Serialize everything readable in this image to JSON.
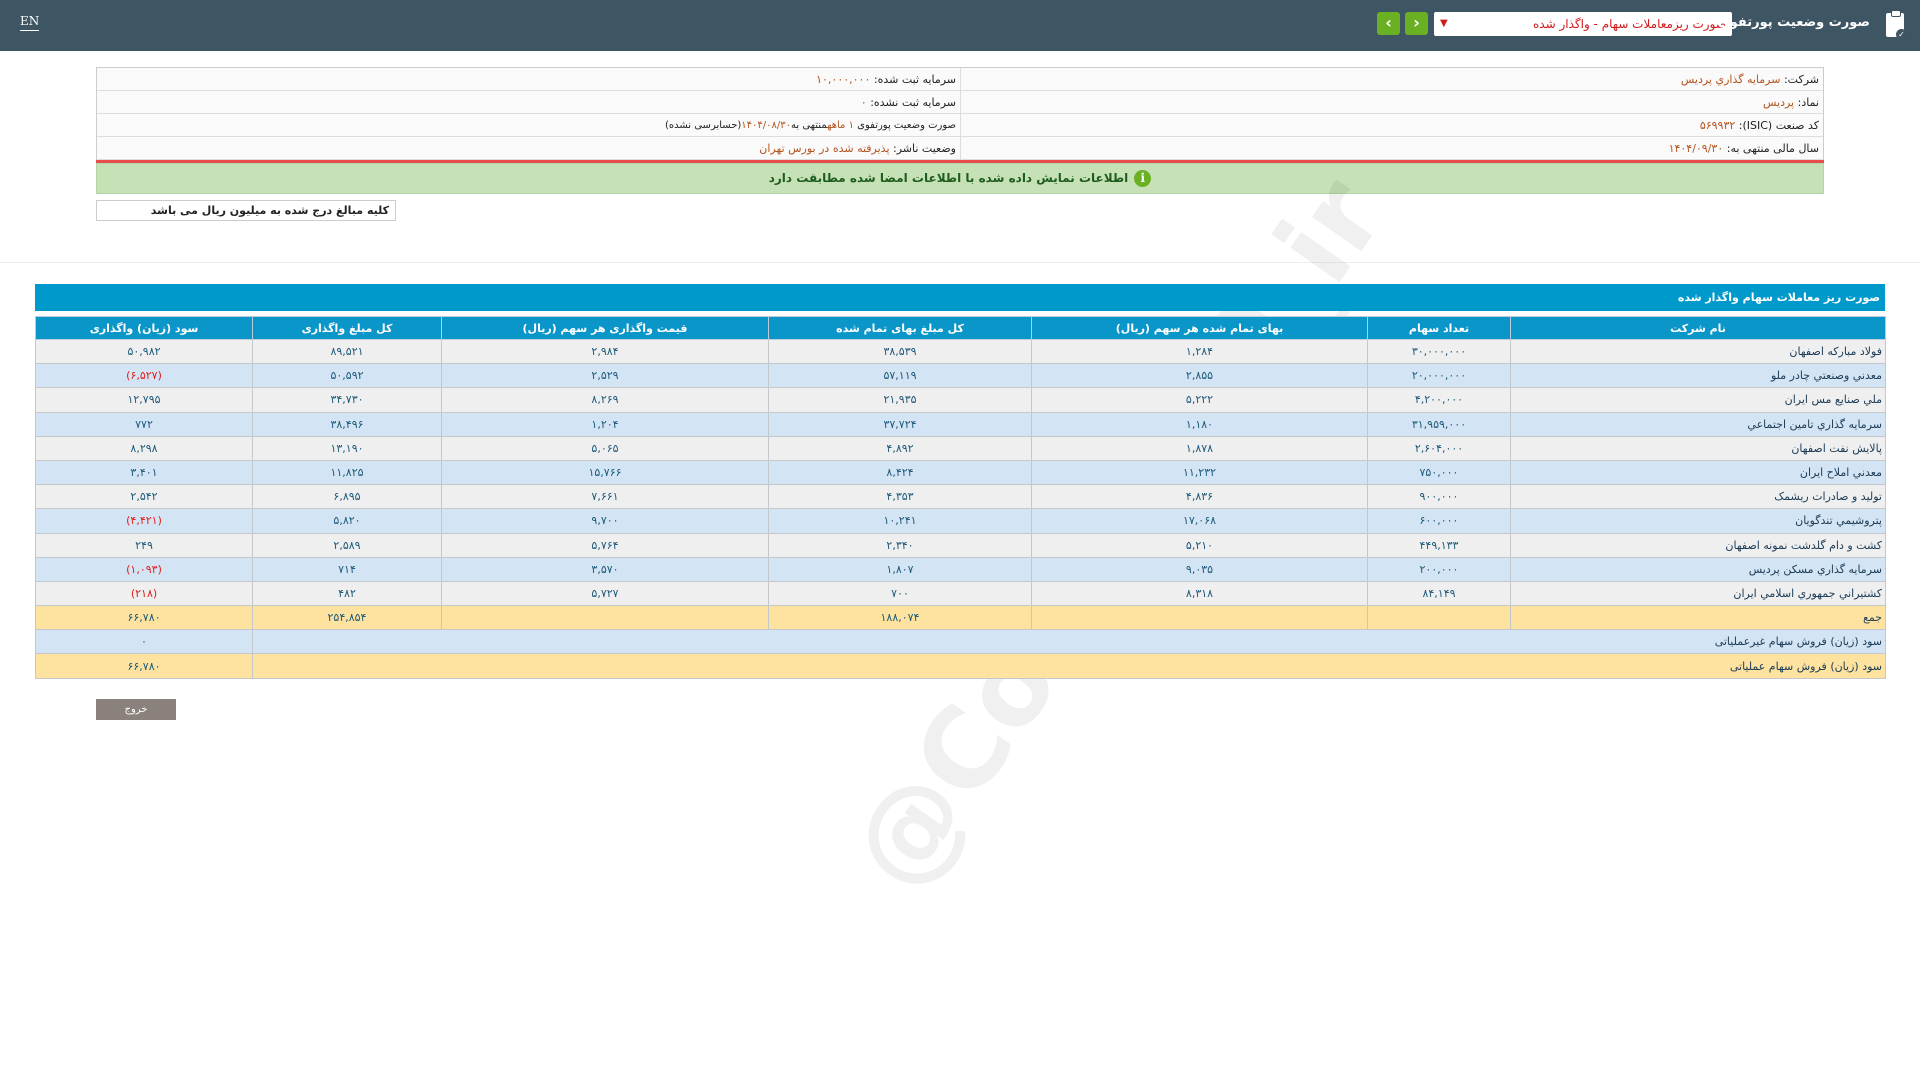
{
  "header": {
    "lang_toggle": "EN",
    "app_title": "صورت وضعیت پورتفوی",
    "report_select": "صورت ریزمعاملات سهام - واگذار شده",
    "prev_icon": "chevron-left-icon",
    "next_icon": "chevron-right-icon"
  },
  "info": {
    "company_label": "شرکت:",
    "company_value": "سرمايه گذاري پرديس",
    "symbol_label": "نماد:",
    "symbol_value": "پرديس",
    "isic_label": "کد صنعت (ISIC):",
    "isic_value": "۵۶۹۹۳۲",
    "fiscal_label": "سال مالی منتهی به:",
    "fiscal_value": "۱۴۰۴/۰۹/۳۰",
    "reg_capital_label": "سرمایه ثبت شده:",
    "reg_capital_value": "۱۰,۰۰۰,۰۰۰",
    "unreg_capital_label": "سرمایه ثبت نشده:",
    "unreg_capital_value": "۰",
    "period_prefix": "صورت وضعیت پورتفوی",
    "period_months": "۱ ماهه",
    "period_mid": "منتهی به",
    "period_date": "۱۴۰۴/۰۸/۳۰",
    "period_suffix": "(حسابرسی نشده)",
    "status_label": "وضعیت ناشر:",
    "status_value": "پذیرفته شده در بورس تهران"
  },
  "notice": "اطلاعات نمایش داده شده با اطلاعات امضا شده مطابقت دارد",
  "units_note": "کلیه مبالغ درج شده به میلیون ریال می باشد",
  "table": {
    "title": "صورت ریز معاملات سهام واگذار شده",
    "columns": [
      "نام شرکت",
      "تعداد سهام",
      "بهای تمام شده هر سهم (ریال)",
      "کل مبلغ بهای تمام شده",
      "قیمت واگذاری هر سهم (ریال)",
      "کل مبلغ واگذاری",
      "سود (زیان) واگذاری"
    ],
    "rows": [
      [
        "فولاد مباركه اصفهان",
        "۳۰,۰۰۰,۰۰۰",
        "۱,۲۸۴",
        "۳۸,۵۳۹",
        "۲,۹۸۴",
        "۸۹,۵۲۱",
        "۵۰,۹۸۲"
      ],
      [
        "معدني وصنعتي چادر ملو",
        "۲۰,۰۰۰,۰۰۰",
        "۲,۸۵۵",
        "۵۷,۱۱۹",
        "۲,۵۲۹",
        "۵۰,۵۹۲",
        "(۶,۵۲۷)"
      ],
      [
        "ملي صنايع مس ايران",
        "۴,۲۰۰,۰۰۰",
        "۵,۲۲۲",
        "۲۱,۹۳۵",
        "۸,۲۶۹",
        "۳۴,۷۳۰",
        "۱۲,۷۹۵"
      ],
      [
        "سرمايه گذاري تامين اجتماعي",
        "۳۱,۹۵۹,۰۰۰",
        "۱,۱۸۰",
        "۳۷,۷۲۴",
        "۱,۲۰۴",
        "۳۸,۴۹۶",
        "۷۷۲"
      ],
      [
        "پالايش نفت اصفهان",
        "۲,۶۰۴,۰۰۰",
        "۱,۸۷۸",
        "۴,۸۹۲",
        "۵,۰۶۵",
        "۱۳,۱۹۰",
        "۸,۲۹۸"
      ],
      [
        "معدني املاح ايران",
        "۷۵۰,۰۰۰",
        "۱۱,۲۳۲",
        "۸,۴۲۴",
        "۱۵,۷۶۶",
        "۱۱,۸۲۵",
        "۳,۴۰۱"
      ],
      [
        "توليد و صادرات ريشمک",
        "۹۰۰,۰۰۰",
        "۴,۸۳۶",
        "۴,۳۵۳",
        "۷,۶۶۱",
        "۶,۸۹۵",
        "۲,۵۴۲"
      ],
      [
        "پتروشيمي تندگويان",
        "۶۰۰,۰۰۰",
        "۱۷,۰۶۸",
        "۱۰,۲۴۱",
        "۹,۷۰۰",
        "۵,۸۲۰",
        "(۴,۴۲۱)"
      ],
      [
        "کشت و دام گلدشت نمونه اصفهان",
        "۴۴۹,۱۳۳",
        "۵,۲۱۰",
        "۲,۳۴۰",
        "۵,۷۶۴",
        "۲,۵۸۹",
        "۲۴۹"
      ],
      [
        "سرمايه گذاري مسکن پرديس",
        "۲۰۰,۰۰۰",
        "۹,۰۳۵",
        "۱,۸۰۷",
        "۳,۵۷۰",
        "۷۱۴",
        "(۱,۰۹۳)"
      ],
      [
        "کشتيراني جمهوري اسلامي ايران",
        "۸۴,۱۴۹",
        "۸,۳۱۸",
        "۷۰۰",
        "۵,۷۲۷",
        "۴۸۲",
        "(۲۱۸)"
      ]
    ],
    "total": {
      "label": "جمع",
      "total_cost": "۱۸۸,۰۷۴",
      "total_sale": "۲۵۴,۸۵۴",
      "profit": "۶۶,۷۸۰"
    },
    "non_operating": {
      "label": "سود (زیان) فروش سهام غیرعملیاتی",
      "value": "۰"
    },
    "operating": {
      "label": "سود (زیان) فروش سهام عملیاتی",
      "value": "۶۶,۷۸۰"
    }
  },
  "exit_label": "خروج",
  "watermark": "@Codal360_ir",
  "colors": {
    "topbar": "#3e5563",
    "accent": "#0099cc",
    "nav_green": "#6ab023",
    "negative": "#e0201c",
    "total_row": "#fde2a0"
  }
}
